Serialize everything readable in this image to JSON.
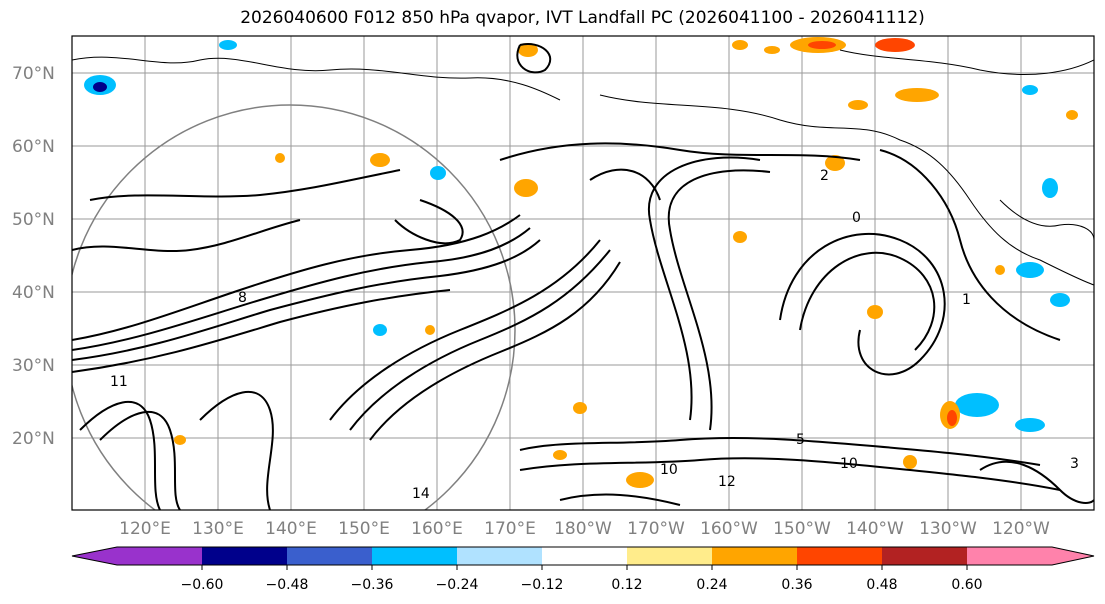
{
  "title": "2026040600 F012 850 hPa qvapor, IVT Landfall PC (2026041100 - 2026041112)",
  "lat_labels": [
    "70°N",
    "60°N",
    "50°N",
    "40°N",
    "30°N",
    "20°N"
  ],
  "lon_labels": [
    "120°E",
    "130°E",
    "140°E",
    "150°E",
    "160°E",
    "170°E",
    "180°W",
    "170°W",
    "160°W",
    "150°W",
    "140°W",
    "130°W",
    "120°W"
  ],
  "colorbar": {
    "ticks": [
      "−0.60",
      "−0.48",
      "−0.36",
      "−0.24",
      "−0.12",
      "0.12",
      "0.24",
      "0.36",
      "0.48",
      "0.60"
    ],
    "colors": [
      "#9932CC",
      "#00008B",
      "#3A5FCD",
      "#00BFFF",
      "#B0E2FF",
      "#FFFFFF",
      "#FFEC8B",
      "#FFA500",
      "#FF4500",
      "#B22222",
      "#FF82AB"
    ]
  },
  "contour_labels": [
    "11",
    "10",
    "12",
    "14",
    "5",
    "3",
    "2",
    "1",
    "0",
    "10",
    "8"
  ]
}
